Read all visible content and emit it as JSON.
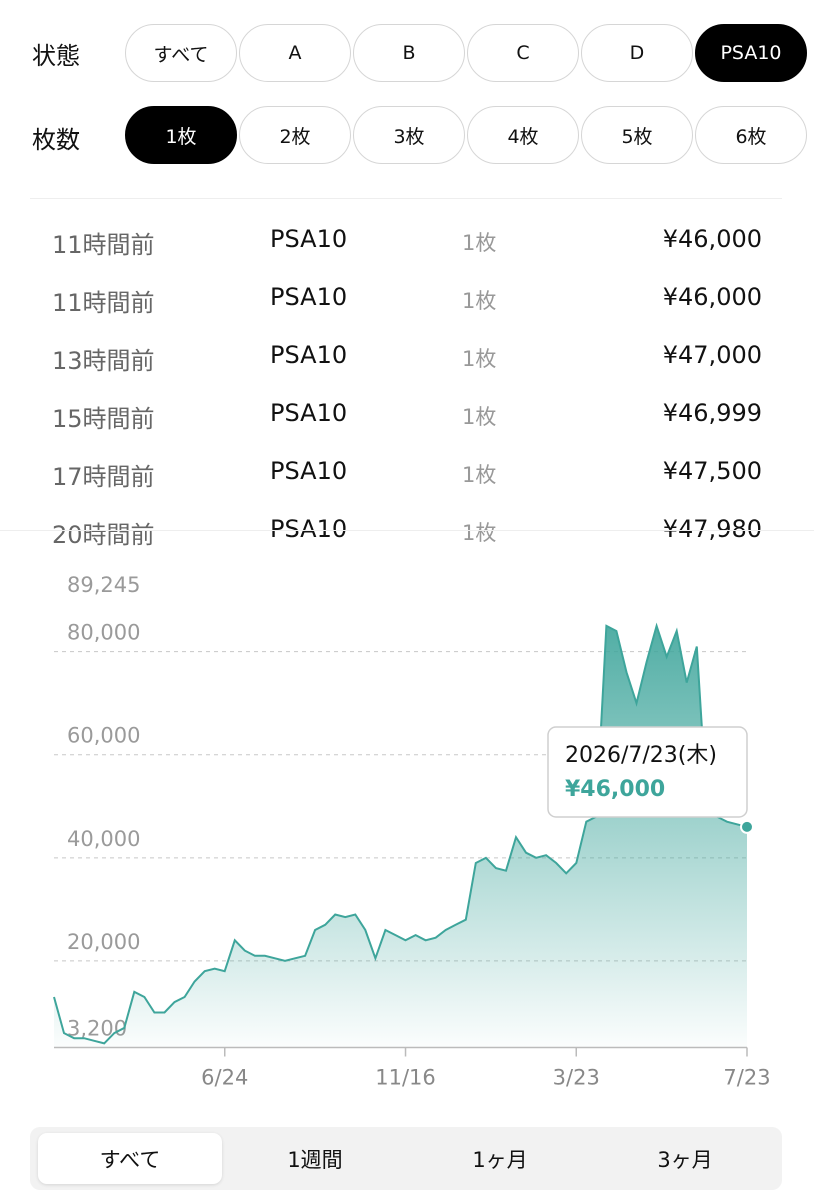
{
  "filters": {
    "condition": {
      "label": "状態",
      "options": [
        {
          "label": "すべて",
          "selected": false
        },
        {
          "label": "A",
          "selected": false
        },
        {
          "label": "B",
          "selected": false
        },
        {
          "label": "C",
          "selected": false
        },
        {
          "label": "D",
          "selected": false
        },
        {
          "label": "PSA10",
          "selected": true
        }
      ]
    },
    "count": {
      "label": "枚数",
      "options": [
        {
          "label": "1枚",
          "selected": true
        },
        {
          "label": "2枚",
          "selected": false
        },
        {
          "label": "3枚",
          "selected": false
        },
        {
          "label": "4枚",
          "selected": false
        },
        {
          "label": "5枚",
          "selected": false
        },
        {
          "label": "6枚",
          "selected": false
        }
      ]
    }
  },
  "table": {
    "rows": [
      [
        "11時間前",
        "PSA10",
        "1枚",
        "¥46,000"
      ],
      [
        "11時間前",
        "PSA10",
        "1枚",
        "¥46,000"
      ],
      [
        "13時間前",
        "PSA10",
        "1枚",
        "¥47,000"
      ],
      [
        "15時間前",
        "PSA10",
        "1枚",
        "¥46,999"
      ],
      [
        "17時間前",
        "PSA10",
        "1枚",
        "¥47,500"
      ],
      [
        "20時間前",
        "PSA10",
        "1枚",
        "¥47,980"
      ]
    ]
  },
  "chart_data": {
    "type": "area",
    "color": "#3ea59b",
    "values": [
      13000,
      6000,
      5000,
      5000,
      4500,
      4000,
      6000,
      7000,
      14000,
      13000,
      10000,
      10000,
      12000,
      13000,
      16000,
      18000,
      18500,
      18000,
      24000,
      22000,
      21000,
      21000,
      20500,
      20000,
      20500,
      21000,
      26000,
      27000,
      29000,
      28500,
      29000,
      26000,
      20500,
      26000,
      25000,
      24000,
      25000,
      24000,
      24500,
      26000,
      27000,
      28000,
      39000,
      40000,
      38000,
      37500,
      44000,
      41000,
      40000,
      40500,
      39000,
      37000,
      39000,
      47000,
      48000,
      85000,
      84000,
      76000,
      70000,
      78000,
      85000,
      79000,
      84000,
      74000,
      81000,
      50000,
      48000,
      47000,
      46500,
      46000
    ],
    "xlim": [
      0,
      69
    ],
    "xticks": [
      {
        "value": 17,
        "label": "6/24"
      },
      {
        "value": 35,
        "label": "11/16"
      },
      {
        "value": 52,
        "label": "3/23"
      },
      {
        "value": 69,
        "label": "7/23"
      }
    ],
    "ylim": [
      3200,
      89245
    ],
    "yticks": [
      {
        "value": 3200,
        "label": "3,200"
      },
      {
        "value": 20000,
        "label": "20,000"
      },
      {
        "value": 40000,
        "label": "40,000"
      },
      {
        "value": 60000,
        "label": "60,000"
      },
      {
        "value": 80000,
        "label": "80,000"
      },
      {
        "value": 89245,
        "label": "89,245"
      }
    ],
    "grid": true,
    "tooltip": {
      "date": "2026/7/23(木)",
      "price": "¥46,000"
    }
  },
  "range_tabs": [
    {
      "label": "すべて",
      "selected": true
    },
    {
      "label": "1週間",
      "selected": false
    },
    {
      "label": "1ヶ月",
      "selected": false
    },
    {
      "label": "3ヶ月",
      "selected": false
    }
  ]
}
